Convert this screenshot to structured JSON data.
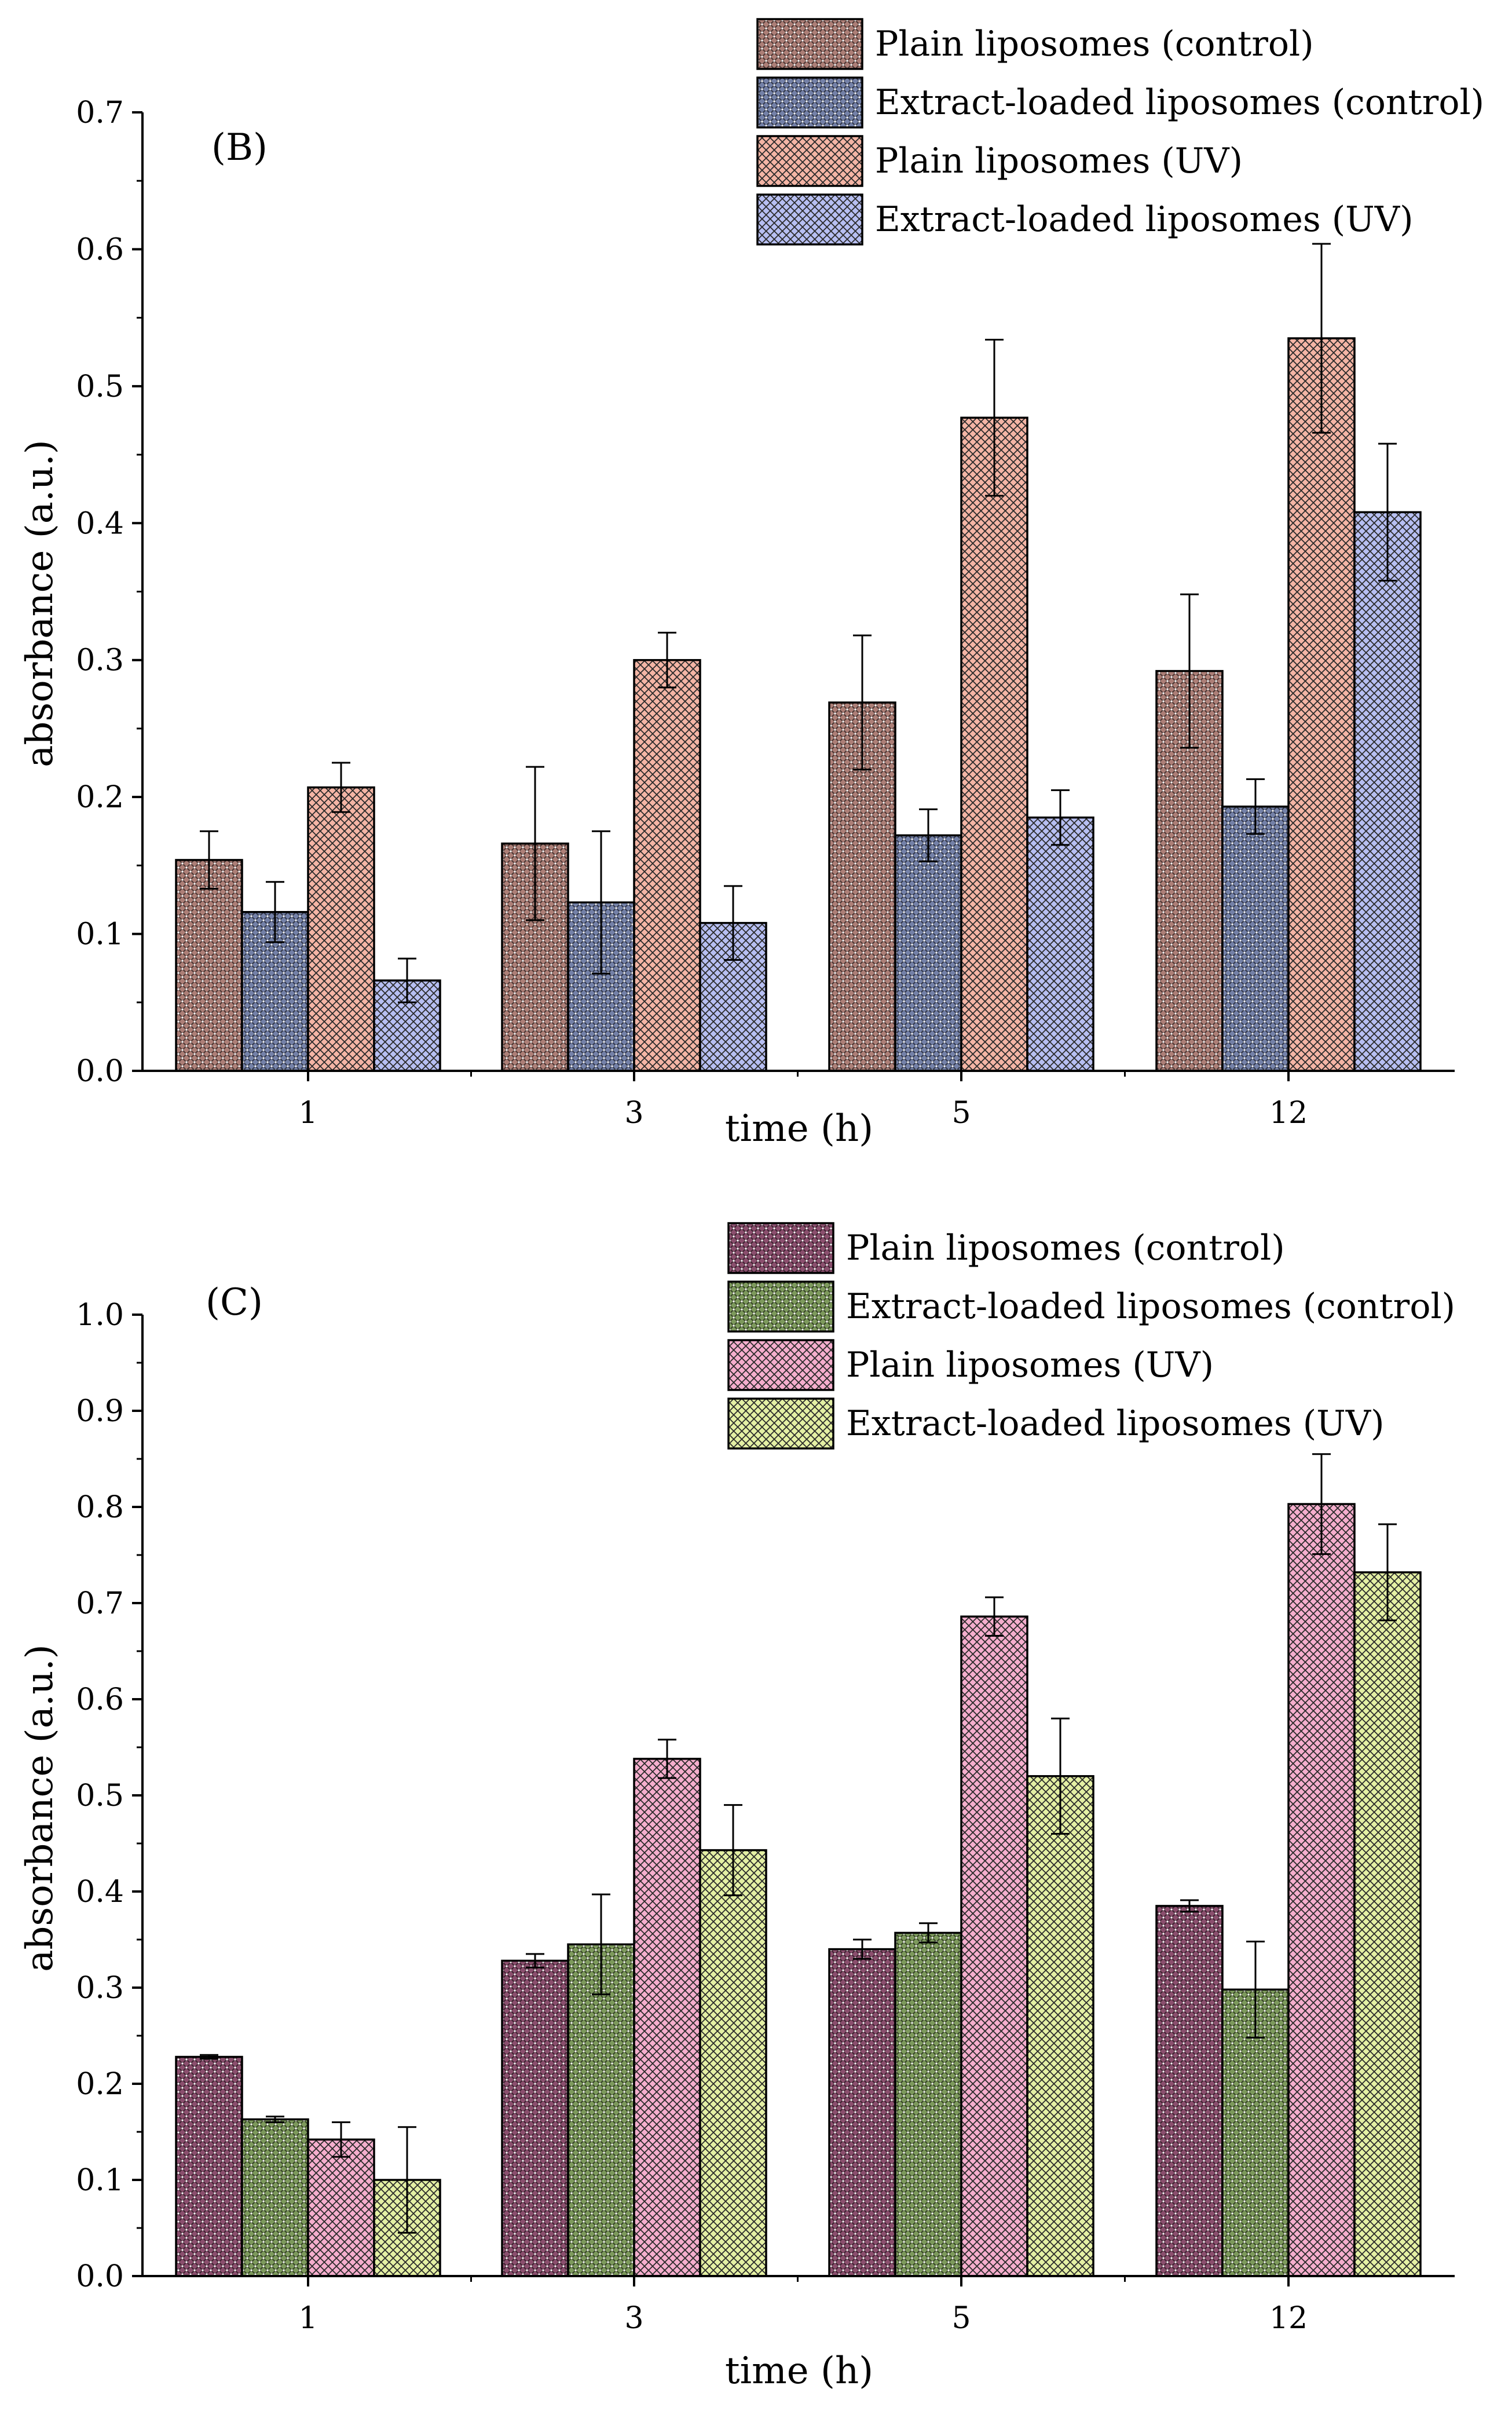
{
  "chart_data": [
    {
      "type": "bar",
      "panel_label": "(B)",
      "categories": [
        "1",
        "3",
        "5",
        "12"
      ],
      "xlabel": "time (h)",
      "ylabel": "absorbance (a.u.)",
      "ylim": [
        0,
        0.7
      ],
      "yticks": [
        "0.0",
        "0.1",
        "0.2",
        "0.3",
        "0.4",
        "0.5",
        "0.6",
        "0.7"
      ],
      "ytick_values": [
        0,
        0.1,
        0.2,
        0.3,
        0.4,
        0.5,
        0.6,
        0.7
      ],
      "legend_position": "top-right",
      "series": [
        {
          "name": "Plain liposomes (control)",
          "color": "#ad7f77",
          "pattern": "dots",
          "values": [
            0.154,
            0.166,
            0.269,
            0.292
          ],
          "errors": [
            0.021,
            0.056,
            0.049,
            0.056
          ]
        },
        {
          "name": "Extract-loaded liposomes (control)",
          "color": "#7481a8",
          "pattern": "dots",
          "values": [
            0.116,
            0.123,
            0.172,
            0.193
          ],
          "errors": [
            0.022,
            0.052,
            0.019,
            0.02
          ]
        },
        {
          "name": "Plain liposomes (UV)",
          "color": "#f4b5a5",
          "pattern": "cross",
          "values": [
            0.207,
            0.3,
            0.477,
            0.535
          ],
          "errors": [
            0.018,
            0.02,
            0.057,
            0.069
          ]
        },
        {
          "name": "Extract-loaded liposomes (UV)",
          "color": "#b7bff2",
          "pattern": "cross",
          "values": [
            0.066,
            0.108,
            0.185,
            0.408
          ],
          "errors": [
            0.016,
            0.027,
            0.02,
            0.05
          ]
        }
      ]
    },
    {
      "type": "bar",
      "panel_label": "(C)",
      "categories": [
        "1",
        "3",
        "5",
        "12"
      ],
      "xlabel": "time (h)",
      "ylabel": "absorbance (a.u.)",
      "ylim": [
        0,
        1.0
      ],
      "yticks": [
        "0.0",
        "0.1",
        "0.2",
        "0.3",
        "0.4",
        "0.5",
        "0.6",
        "0.7",
        "0.8",
        "0.9",
        "1.0"
      ],
      "ytick_values": [
        0,
        0.1,
        0.2,
        0.3,
        0.4,
        0.5,
        0.6,
        0.7,
        0.8,
        0.9,
        1.0
      ],
      "legend_position": "top-right",
      "series": [
        {
          "name": "Plain liposomes (control)",
          "color": "#8b4f6e",
          "pattern": "dots",
          "values": [
            0.228,
            0.328,
            0.34,
            0.385
          ],
          "errors": [
            0.002,
            0.007,
            0.01,
            0.006
          ]
        },
        {
          "name": "Extract-loaded liposomes (control)",
          "color": "#7d9a5c",
          "pattern": "dots",
          "values": [
            0.163,
            0.345,
            0.357,
            0.298
          ],
          "errors": [
            0.003,
            0.052,
            0.01,
            0.05
          ]
        },
        {
          "name": "Plain liposomes (UV)",
          "color": "#f5aecd",
          "pattern": "cross",
          "values": [
            0.142,
            0.538,
            0.686,
            0.803
          ],
          "errors": [
            0.018,
            0.02,
            0.02,
            0.052
          ]
        },
        {
          "name": "Extract-loaded liposomes (UV)",
          "color": "#e4f0a4",
          "pattern": "cross",
          "values": [
            0.1,
            0.443,
            0.52,
            0.732
          ],
          "errors": [
            0.055,
            0.047,
            0.06,
            0.05
          ]
        }
      ]
    }
  ]
}
